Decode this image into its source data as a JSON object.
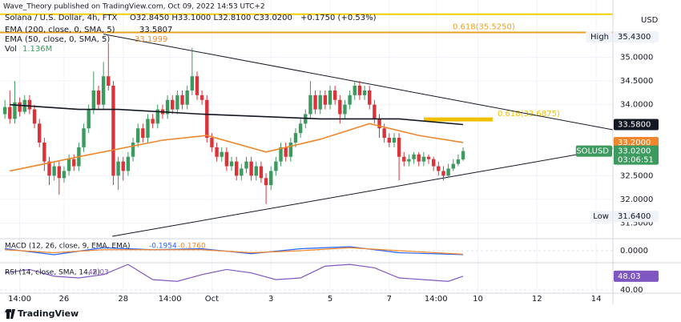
{
  "header": {
    "publisher": "Wave_Theory published on TradingView.com, Oct 09, 2022 14:53 UTC+2",
    "ohlc": "O32.8450 H33.1000 L32.8100 C33.0200",
    "change": "+0.1750 (+0.53%)",
    "volume_label": "Vol",
    "volume_value": "1.136M",
    "currency": "USD"
  },
  "footer": "TradingView",
  "chart_data": [
    {
      "type": "candlestick",
      "title": "Solana / U.S. Dollar, 4h, FTX",
      "up_color": "#3c9a5f",
      "down_color": "#d9343a",
      "xlim": [
        -1.0,
        123.4
      ],
      "ylim": [
        31.17,
        36.21
      ],
      "xticks": [
        {
          "value": 3,
          "label": "14:00"
        },
        {
          "value": 12,
          "label": "26"
        },
        {
          "value": 24,
          "label": "28"
        },
        {
          "value": 33.5,
          "label": "14:00"
        },
        {
          "value": 42,
          "label": "Oct"
        },
        {
          "value": 54,
          "label": "3"
        },
        {
          "value": 66,
          "label": "5"
        },
        {
          "value": 78,
          "label": "7"
        },
        {
          "value": 87.5,
          "label": "14:00"
        },
        {
          "value": 96,
          "label": "10"
        },
        {
          "value": 108,
          "label": "12"
        },
        {
          "value": 120,
          "label": "14"
        }
      ],
      "yticks": [
        {
          "value": 31.5,
          "label": "31.5000"
        },
        {
          "value": 32,
          "label": "32.0000"
        },
        {
          "value": 32.5,
          "label": "32.5000"
        },
        {
          "value": 34,
          "label": "34.0000"
        },
        {
          "value": 34.5,
          "label": "34.5000"
        },
        {
          "value": 35,
          "label": "35.0000"
        }
      ],
      "grid": true,
      "open": [
        33.8,
        33.95,
        33.7,
        34.05,
        33.85,
        34.1,
        33.9,
        33.6,
        33.2,
        32.8,
        32.5,
        32.7,
        32.45,
        32.6,
        32.85,
        32.7,
        33.1,
        33.5,
        33.9,
        34.3,
        34.0,
        34.6,
        34.4,
        32.5,
        32.8,
        32.6,
        32.9,
        33.2,
        33.5,
        33.3,
        33.7,
        33.6,
        33.9,
        33.8,
        34.1,
        33.9,
        34.2,
        34.0,
        34.3,
        34.6,
        34.2,
        34.1,
        33.3,
        33.1,
        32.9,
        33.0,
        32.7,
        32.8,
        32.5,
        32.65,
        32.8,
        32.5,
        32.7,
        32.45,
        32.3,
        32.6,
        32.8,
        33.1,
        32.9,
        33.2,
        33.4,
        33.6,
        33.8,
        34.2,
        33.9,
        34.2,
        34.0,
        34.3,
        34.1,
        33.8,
        34.0,
        34.2,
        34.4,
        34.2,
        34.3,
        34.0,
        33.7,
        33.5,
        33.3,
        33.2,
        33.3,
        32.9,
        32.8,
        32.85,
        32.95,
        32.8,
        32.9,
        32.85,
        32.7,
        32.6,
        32.5,
        32.65,
        32.75,
        32.845
      ],
      "high": [
        34.1,
        34.3,
        34.5,
        34.15,
        34.2,
        34.2,
        34.0,
        33.7,
        33.3,
        32.9,
        32.8,
        32.8,
        32.7,
        32.95,
        32.95,
        33.2,
        33.6,
        34.0,
        34.7,
        34.4,
        34.9,
        35.3,
        34.5,
        32.9,
        32.9,
        33.0,
        33.3,
        33.6,
        33.6,
        33.8,
        33.8,
        34.0,
        34.0,
        34.2,
        34.2,
        34.3,
        34.3,
        34.4,
        35.2,
        34.7,
        34.3,
        34.2,
        33.4,
        33.2,
        33.1,
        33.1,
        32.9,
        32.9,
        32.75,
        32.9,
        32.9,
        32.8,
        32.8,
        32.55,
        32.7,
        32.9,
        33.2,
        33.2,
        33.3,
        33.5,
        33.7,
        33.9,
        34.5,
        34.3,
        34.3,
        34.3,
        34.4,
        34.4,
        34.2,
        34.1,
        34.3,
        34.5,
        34.5,
        34.4,
        34.4,
        34.1,
        33.8,
        33.6,
        33.4,
        33.4,
        33.4,
        33.0,
        32.95,
        33.0,
        33.0,
        33.0,
        32.95,
        32.9,
        32.8,
        32.7,
        32.75,
        32.85,
        32.95,
        33.1
      ],
      "low": [
        33.7,
        33.6,
        33.6,
        33.75,
        33.8,
        33.8,
        33.5,
        33.1,
        32.6,
        32.3,
        32.4,
        32.1,
        32.35,
        32.5,
        32.6,
        32.6,
        33.0,
        33.4,
        33.8,
        33.9,
        33.9,
        34.3,
        32.3,
        32.2,
        32.4,
        32.5,
        32.8,
        33.1,
        33.2,
        33.2,
        33.5,
        33.5,
        33.7,
        33.7,
        33.8,
        33.8,
        33.9,
        33.9,
        34.2,
        34.1,
        34.0,
        33.2,
        33.0,
        32.8,
        32.8,
        32.6,
        32.6,
        32.4,
        32.4,
        32.55,
        32.4,
        32.4,
        32.35,
        31.9,
        32.2,
        32.5,
        32.7,
        32.8,
        32.8,
        33.1,
        33.3,
        33.5,
        33.7,
        33.8,
        33.8,
        33.9,
        33.9,
        34.0,
        33.6,
        33.7,
        33.9,
        34.1,
        34.1,
        34.1,
        33.9,
        33.6,
        33.3,
        33.2,
        33.1,
        33.1,
        32.4,
        32.7,
        32.7,
        32.75,
        32.7,
        32.7,
        32.75,
        32.6,
        32.5,
        32.4,
        32.45,
        32.6,
        32.7,
        32.81
      ],
      "close": [
        33.95,
        33.7,
        34.05,
        33.85,
        34.1,
        33.9,
        33.6,
        33.2,
        32.8,
        32.5,
        32.7,
        32.45,
        32.6,
        32.85,
        32.7,
        33.1,
        33.5,
        33.9,
        34.3,
        34.0,
        34.6,
        34.4,
        32.5,
        32.8,
        32.6,
        32.9,
        33.2,
        33.5,
        33.3,
        33.7,
        33.6,
        33.9,
        33.8,
        34.1,
        33.9,
        34.2,
        34.0,
        34.3,
        34.6,
        34.2,
        34.1,
        33.3,
        33.1,
        32.9,
        33.0,
        32.7,
        32.8,
        32.5,
        32.65,
        32.8,
        32.5,
        32.7,
        32.45,
        32.3,
        32.6,
        32.8,
        33.1,
        32.9,
        33.2,
        33.4,
        33.6,
        33.8,
        34.2,
        33.9,
        34.2,
        34.0,
        34.3,
        34.1,
        33.8,
        34.0,
        34.2,
        34.4,
        34.2,
        34.3,
        34.0,
        33.7,
        33.5,
        33.3,
        33.2,
        33.3,
        32.9,
        32.8,
        32.85,
        32.95,
        32.8,
        32.9,
        32.85,
        32.7,
        32.6,
        32.5,
        32.65,
        32.75,
        32.845,
        33.02
      ],
      "series": [
        {
          "name": "EMA (200, close, 0, SMA, 5)",
          "legend_value": "33.5807",
          "color": "#131722",
          "x": [
            1,
            15,
            23,
            40,
            64,
            80,
            93
          ],
          "values": [
            34.0,
            33.9,
            33.9,
            33.8,
            33.7,
            33.7,
            33.58
          ]
        },
        {
          "name": "EMA (50, close, 0, SMA, 5)",
          "legend_value": "33.1999",
          "color": "#f0862a",
          "x": [
            1,
            15,
            32,
            41,
            53,
            64,
            74,
            84,
            93
          ],
          "values": [
            32.6,
            32.9,
            33.25,
            33.35,
            33.0,
            33.27,
            33.6,
            33.35,
            33.2
          ]
        }
      ],
      "trendlines": [
        {
          "color": "#131722",
          "x": [
            20,
            123.4
          ],
          "values": [
            35.49,
            33.47
          ]
        },
        {
          "color": "#131722",
          "x": [
            21.8,
            123.4
          ],
          "values": [
            31.22,
            33.08
          ]
        }
      ],
      "levels": [
        {
          "value": 35.91,
          "color": "#f2d000"
        },
        {
          "value": 35.525,
          "label": "0.618(35.5250)",
          "color": "#e8a020"
        },
        {
          "value": 33.6875,
          "label": "0.618(33.6875)",
          "color": "#f2c000",
          "x": [
            85,
            99
          ]
        }
      ],
      "price_labels": [
        {
          "value": 35.43,
          "label": "35.4300",
          "name": "High",
          "color": "#f0f3fa",
          "text_color": "#131722"
        },
        {
          "value": 33.58,
          "label": "33.5800",
          "color": "#131722",
          "text_color": "#ffffff"
        },
        {
          "value": 33.2,
          "label": "33.2000",
          "color": "#f0862a",
          "text_color": "#ffffff"
        },
        {
          "value": 33.02,
          "label": "33.0200",
          "name": "SOLUSD",
          "countdown": "03:06:51",
          "color": "#3c9a5f",
          "text_color": "#ffffff"
        },
        {
          "value": 31.64,
          "label": "31.6400",
          "name": "Low",
          "color": "#f0f3fa",
          "text_color": "#131722"
        }
      ]
    },
    {
      "type": "line",
      "title": "MACD (12, 26, close, 9, EMA, EMA)",
      "xlim": [
        -1.0,
        123.4
      ],
      "ylim": [
        -0.6,
        0.6
      ],
      "yticks": [
        {
          "value": 0,
          "label": "0.0000"
        }
      ],
      "series": [
        {
          "legend_value": "-0.1954",
          "color": "#2962ff",
          "x": [
            0,
            10,
            20,
            30,
            40,
            50,
            60,
            70,
            80,
            93
          ],
          "values": [
            0.1,
            -0.2,
            0.15,
            0.05,
            0.1,
            -0.15,
            0.1,
            0.2,
            -0.1,
            -0.1954
          ]
        },
        {
          "legend_value": "-0.1760",
          "color": "#f0862a",
          "x": [
            0,
            10,
            20,
            30,
            40,
            50,
            60,
            70,
            80,
            93
          ],
          "values": [
            0.05,
            -0.1,
            0.05,
            0.05,
            0.05,
            -0.1,
            0.0,
            0.15,
            0.0,
            -0.176
          ]
        }
      ]
    },
    {
      "type": "line",
      "title": "RSI (14, close, SMA, 14, 2)",
      "xlim": [
        -1.0,
        123.4
      ],
      "ylim": [
        38,
        56
      ],
      "yticks": [
        {
          "value": 40,
          "label": "40.00"
        }
      ],
      "series": [
        {
          "legend_value": "48.03",
          "color": "#7e57c2",
          "x": [
            0,
            5,
            10,
            15,
            20,
            25,
            30,
            35,
            40,
            45,
            50,
            55,
            60,
            65,
            70,
            75,
            80,
            85,
            90,
            93
          ],
          "values": [
            50,
            52,
            48,
            47,
            49,
            55,
            46,
            45,
            49,
            52,
            50,
            46,
            47,
            54,
            55,
            53,
            47,
            46,
            45,
            48.03
          ]
        }
      ],
      "price_labels": [
        {
          "value": 48.03,
          "label": "48.03",
          "color": "#7e57c2",
          "text_color": "#ffffff"
        }
      ]
    }
  ]
}
